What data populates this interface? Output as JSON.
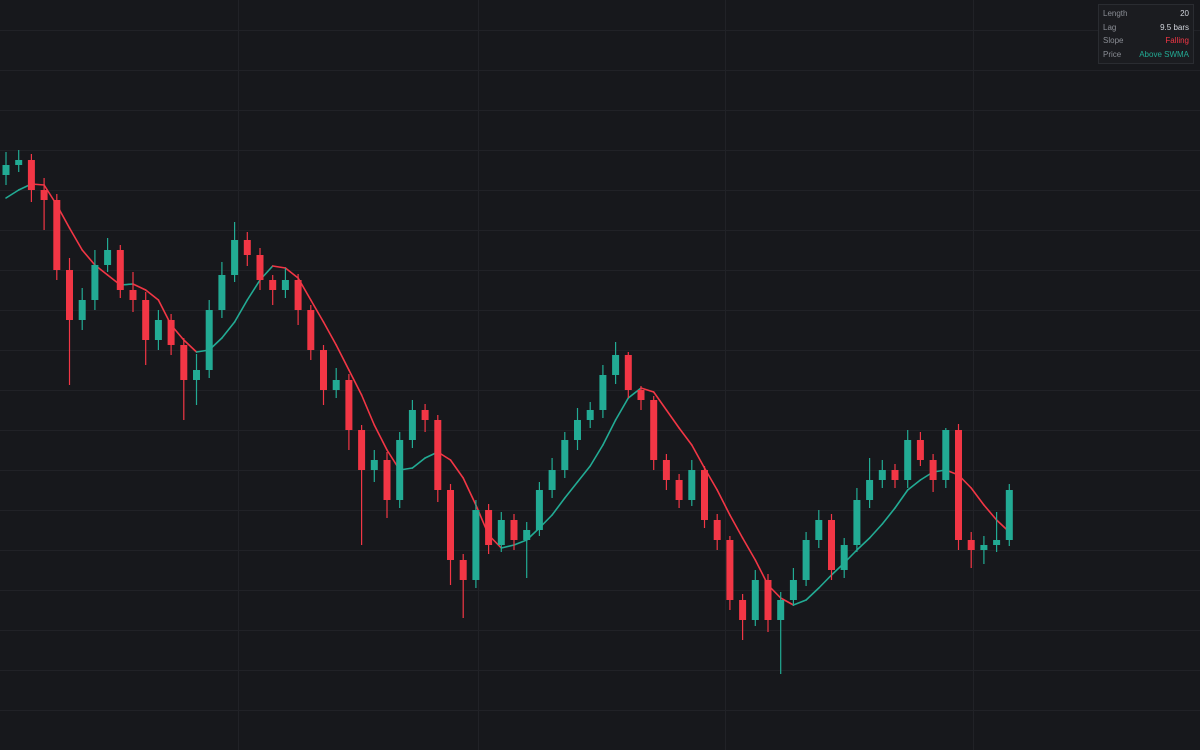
{
  "chart_data": {
    "type": "candlestick",
    "up_color": "#22ab94",
    "down_color": "#f23645",
    "ylim": [
      0,
      750
    ],
    "ohlc": [
      [
        575,
        598,
        565,
        585
      ],
      [
        585,
        600,
        578,
        590
      ],
      [
        590,
        596,
        548,
        560
      ],
      [
        560,
        572,
        520,
        550
      ],
      [
        550,
        556,
        470,
        480
      ],
      [
        480,
        492,
        365,
        430
      ],
      [
        430,
        462,
        420,
        450
      ],
      [
        450,
        500,
        440,
        485
      ],
      [
        485,
        512,
        478,
        500
      ],
      [
        500,
        505,
        452,
        460
      ],
      [
        460,
        478,
        438,
        450
      ],
      [
        450,
        458,
        385,
        410
      ],
      [
        410,
        440,
        400,
        430
      ],
      [
        430,
        436,
        395,
        405
      ],
      [
        405,
        412,
        330,
        370
      ],
      [
        370,
        396,
        345,
        380
      ],
      [
        380,
        450,
        372,
        440
      ],
      [
        440,
        488,
        432,
        475
      ],
      [
        475,
        528,
        468,
        510
      ],
      [
        510,
        518,
        484,
        495
      ],
      [
        495,
        502,
        460,
        470
      ],
      [
        470,
        475,
        445,
        460
      ],
      [
        460,
        482,
        452,
        470
      ],
      [
        470,
        476,
        425,
        440
      ],
      [
        440,
        445,
        390,
        400
      ],
      [
        400,
        405,
        345,
        360
      ],
      [
        360,
        382,
        352,
        370
      ],
      [
        370,
        376,
        300,
        320
      ],
      [
        320,
        325,
        205,
        280
      ],
      [
        280,
        300,
        268,
        290
      ],
      [
        290,
        298,
        232,
        250
      ],
      [
        250,
        318,
        242,
        310
      ],
      [
        310,
        350,
        302,
        340
      ],
      [
        340,
        346,
        318,
        330
      ],
      [
        330,
        335,
        248,
        260
      ],
      [
        260,
        266,
        165,
        190
      ],
      [
        190,
        196,
        132,
        170
      ],
      [
        170,
        250,
        162,
        240
      ],
      [
        240,
        246,
        196,
        205
      ],
      [
        205,
        238,
        198,
        230
      ],
      [
        230,
        236,
        200,
        210
      ],
      [
        210,
        228,
        172,
        220
      ],
      [
        220,
        268,
        214,
        260
      ],
      [
        260,
        292,
        252,
        280
      ],
      [
        280,
        318,
        272,
        310
      ],
      [
        310,
        342,
        300,
        330
      ],
      [
        330,
        348,
        322,
        340
      ],
      [
        340,
        385,
        332,
        375
      ],
      [
        375,
        408,
        366,
        395
      ],
      [
        395,
        398,
        352,
        360
      ],
      [
        360,
        364,
        340,
        350
      ],
      [
        350,
        354,
        280,
        290
      ],
      [
        290,
        296,
        260,
        270
      ],
      [
        270,
        276,
        242,
        250
      ],
      [
        250,
        290,
        244,
        280
      ],
      [
        280,
        284,
        222,
        230
      ],
      [
        230,
        236,
        200,
        210
      ],
      [
        210,
        214,
        140,
        150
      ],
      [
        150,
        156,
        110,
        130
      ],
      [
        130,
        180,
        124,
        170
      ],
      [
        170,
        176,
        118,
        130
      ],
      [
        130,
        158,
        76,
        150
      ],
      [
        150,
        182,
        144,
        170
      ],
      [
        170,
        218,
        164,
        210
      ],
      [
        210,
        240,
        202,
        230
      ],
      [
        230,
        236,
        170,
        180
      ],
      [
        180,
        212,
        172,
        205
      ],
      [
        205,
        262,
        198,
        250
      ],
      [
        250,
        292,
        242,
        270
      ],
      [
        270,
        290,
        262,
        280
      ],
      [
        280,
        286,
        262,
        270
      ],
      [
        270,
        320,
        262,
        310
      ],
      [
        310,
        318,
        284,
        290
      ],
      [
        290,
        296,
        258,
        270
      ],
      [
        270,
        322,
        262,
        320
      ],
      [
        320,
        326,
        200,
        210
      ],
      [
        210,
        218,
        182,
        200
      ],
      [
        200,
        214,
        186,
        205
      ],
      [
        205,
        238,
        198,
        210
      ],
      [
        210,
        266,
        204,
        260
      ]
    ],
    "line": {
      "values": [
        552,
        560,
        566,
        565,
        545,
        522,
        500,
        485,
        475,
        465,
        466,
        460,
        450,
        425,
        410,
        398,
        400,
        412,
        428,
        450,
        470,
        484,
        482,
        472,
        450,
        428,
        405,
        380,
        355,
        325,
        300,
        280,
        282,
        292,
        298,
        290,
        272,
        245,
        215,
        202,
        205,
        210,
        222,
        235,
        252,
        268,
        284,
        305,
        330,
        352,
        362,
        358,
        340,
        322,
        305,
        282,
        260,
        235,
        212,
        190,
        165,
        152,
        145,
        150,
        162,
        175,
        187,
        200,
        212,
        226,
        242,
        260,
        270,
        278,
        280,
        275,
        262,
        245,
        230,
        218
      ]
    }
  },
  "panel": {
    "rows": [
      {
        "label": "Length",
        "value": 20
      },
      {
        "label": "Lag",
        "value": "9.5 bars"
      },
      {
        "label": "Slope",
        "value": "Falling",
        "color": "#f23645"
      },
      {
        "label": "Price",
        "value": "Above SWMA",
        "color": "#22ab94"
      }
    ]
  }
}
